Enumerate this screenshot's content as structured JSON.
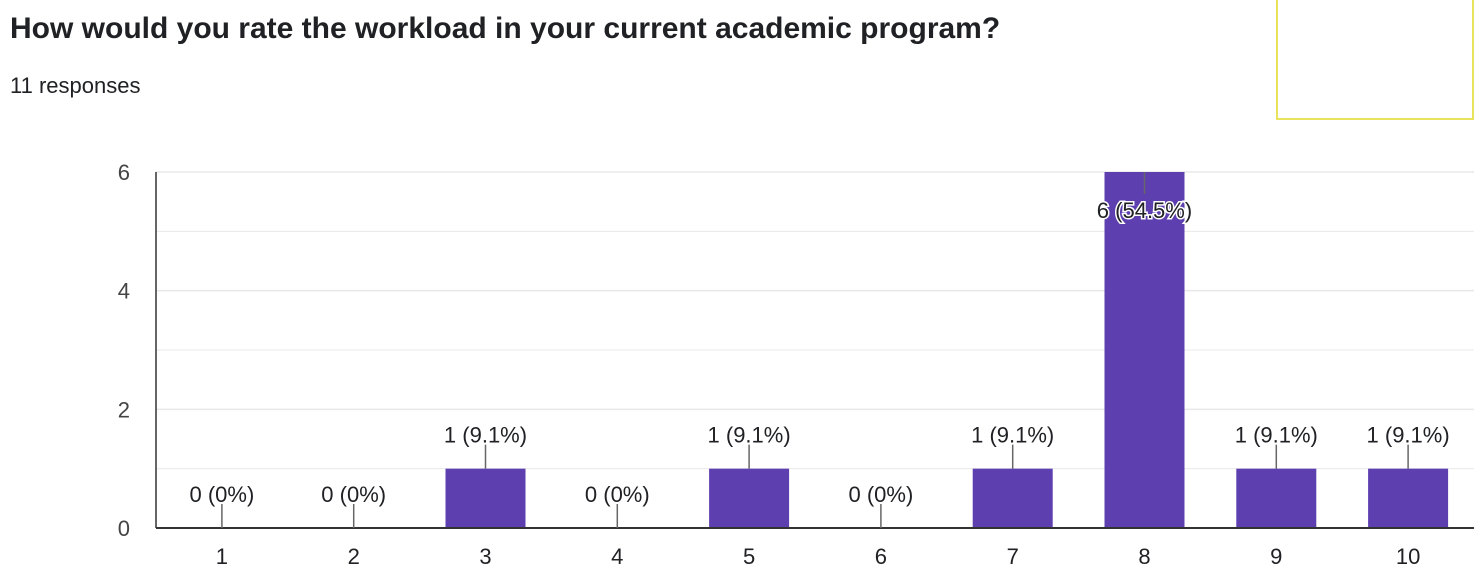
{
  "question": {
    "title": "How would you rate the workload in your current academic program?",
    "responses_label": "11 responses"
  },
  "colors": {
    "bar": "#5e3fb0",
    "grid": "#e8e8e8",
    "axis": "#333333",
    "label_line": "#666666",
    "corner_box_border": "#e8e35a"
  },
  "chart_data": {
    "type": "bar",
    "categories": [
      "1",
      "2",
      "3",
      "4",
      "5",
      "6",
      "7",
      "8",
      "9",
      "10"
    ],
    "values": [
      0,
      0,
      1,
      0,
      1,
      0,
      1,
      6,
      1,
      1
    ],
    "data_labels": [
      "0 (0%)",
      "0 (0%)",
      "1 (9.1%)",
      "0 (0%)",
      "1 (9.1%)",
      "0 (0%)",
      "1 (9.1%)",
      "6 (54.5%)",
      "1 (9.1%)",
      "1 (9.1%)"
    ],
    "ylim": [
      0,
      6
    ],
    "yticks": [
      0,
      2,
      4,
      6
    ],
    "minor_gridlines": [
      1,
      3,
      5
    ],
    "title": "",
    "xlabel": "",
    "ylabel": "",
    "grid": true,
    "legend": "none"
  }
}
